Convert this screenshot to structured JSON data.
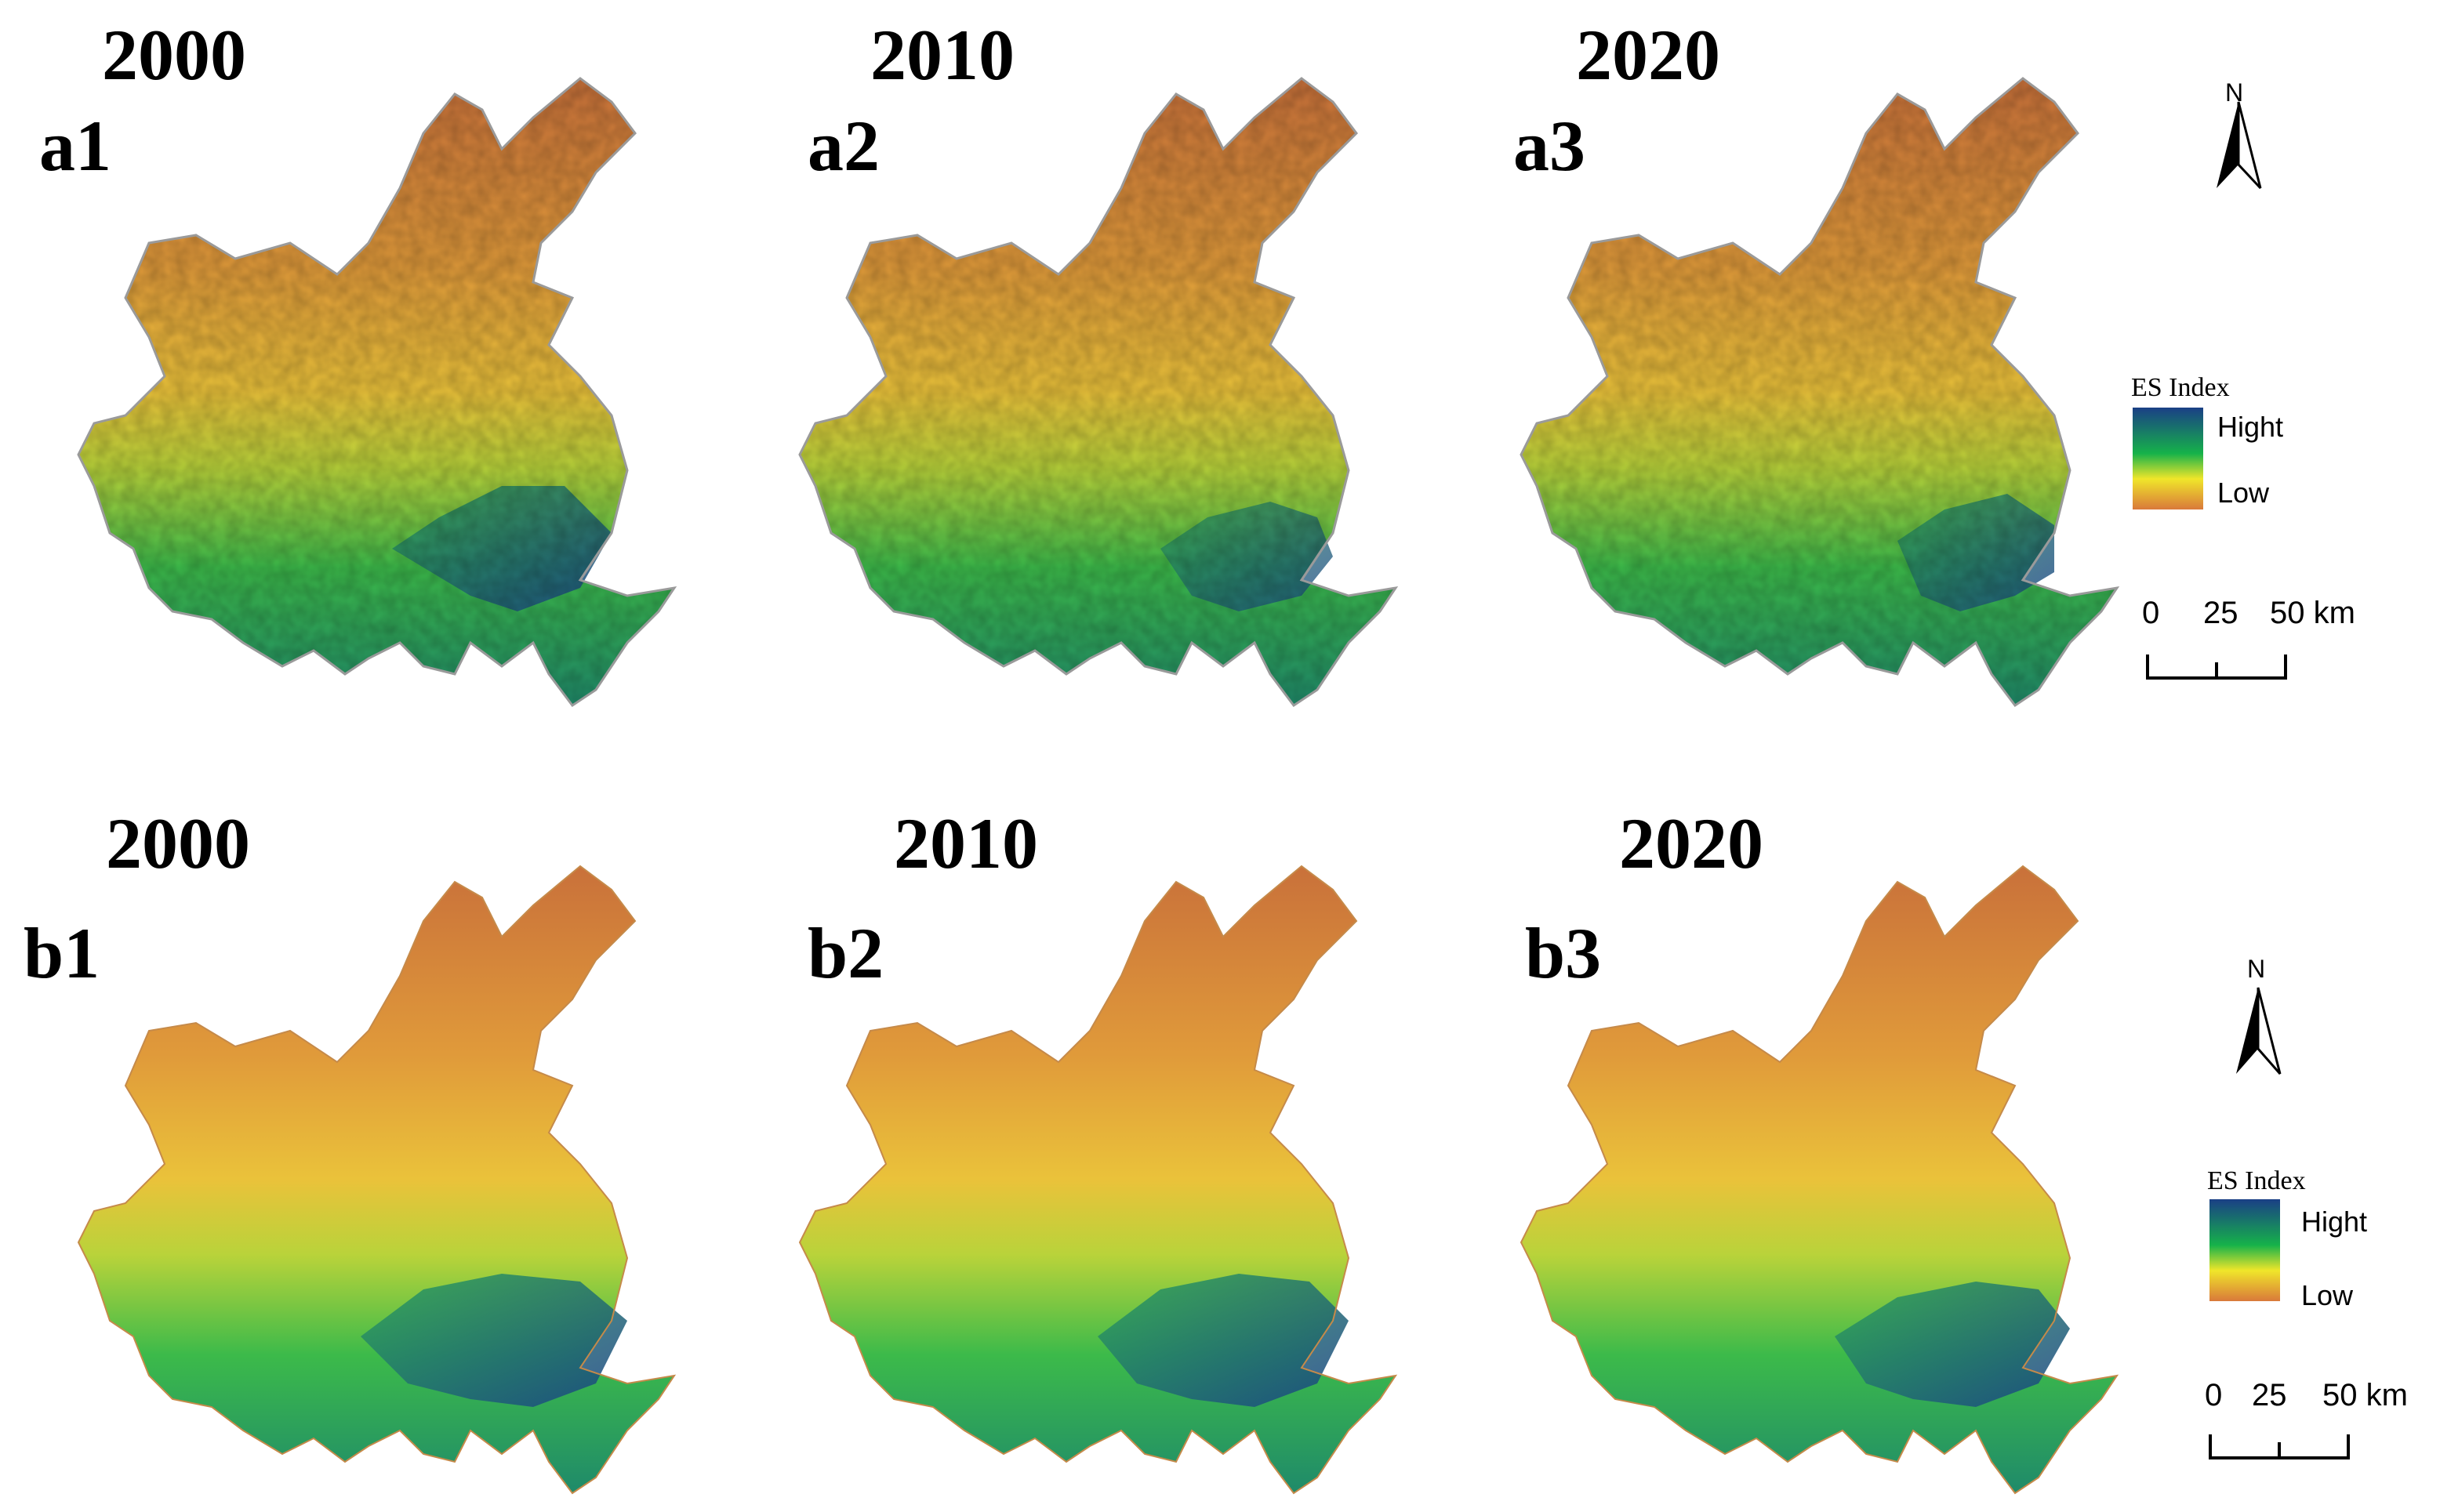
{
  "row_a": {
    "panels": [
      {
        "year": "2000",
        "label": "a1"
      },
      {
        "year": "2010",
        "label": "a2"
      },
      {
        "year": "2020",
        "label": "a3"
      }
    ],
    "legend": {
      "title": "ES Index",
      "high": "Hight",
      "low": "Low"
    },
    "north": "N",
    "scale": {
      "t0": "0",
      "t1": "25",
      "t2": "50 km"
    }
  },
  "row_b": {
    "panels": [
      {
        "year": "2000",
        "label": "b1"
      },
      {
        "year": "2010",
        "label": "b2"
      },
      {
        "year": "2020",
        "label": "b3"
      }
    ],
    "legend": {
      "title": "ES Index",
      "high": "Hight",
      "low": "Low"
    },
    "north": "N",
    "scale": {
      "t0": "0",
      "t1": "25",
      "t2": "50 km"
    }
  },
  "colors": {
    "high": "#1a3f86",
    "mid": "#16b24a",
    "lowmid": "#f0e62a",
    "low": "#d9793a"
  }
}
